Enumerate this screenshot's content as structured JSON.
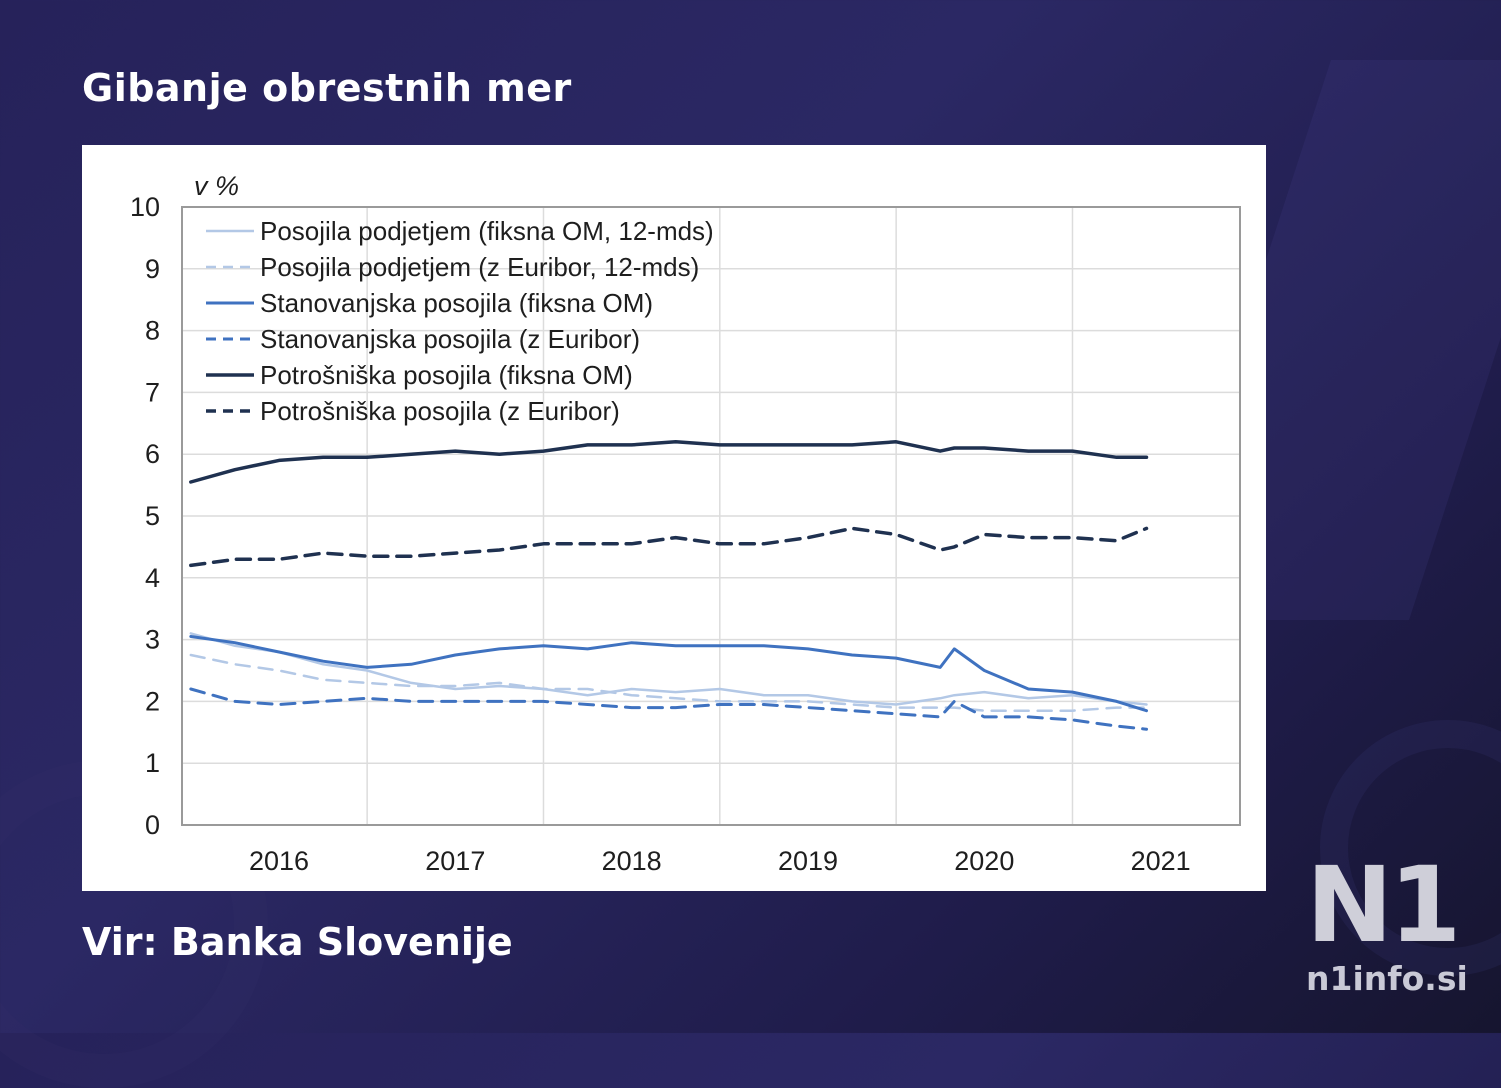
{
  "page_title": "Gibanje obrestnih mer",
  "source_text": "Vir: Banka Slovenije",
  "logo": {
    "mark": "N1",
    "site": "n1info.si"
  },
  "colors": {
    "light_blue": "#b3c8e6",
    "mid_blue": "#3f72c0",
    "dark_navy": "#1f3150"
  },
  "chart_data": {
    "type": "line",
    "title": "",
    "unit_label": "v %",
    "xlabel": "",
    "ylabel": "v %",
    "xlim": [
      2015.45,
      2021.45
    ],
    "ylim": [
      0,
      10
    ],
    "yticks": [
      "0",
      "1",
      "2",
      "3",
      "4",
      "5",
      "6",
      "7",
      "8",
      "9",
      "10"
    ],
    "xticks": [
      {
        "label": "2016",
        "x": 2016
      },
      {
        "label": "2017",
        "x": 2017
      },
      {
        "label": "2018",
        "x": 2018
      },
      {
        "label": "2019",
        "x": 2019
      },
      {
        "label": "2020",
        "x": 2020
      },
      {
        "label": "2021",
        "x": 2021
      }
    ],
    "grid": true,
    "legend_position": "top-left",
    "x": [
      2015.5,
      2015.75,
      2016.0,
      2016.25,
      2016.5,
      2016.75,
      2017.0,
      2017.25,
      2017.5,
      2017.75,
      2018.0,
      2018.25,
      2018.5,
      2018.75,
      2019.0,
      2019.25,
      2019.5,
      2019.75,
      2019.83,
      2020.0,
      2020.25,
      2020.5,
      2020.75,
      2020.92
    ],
    "series": [
      {
        "name": "Posojila podjetjem (fiksna OM, 12-mds)",
        "color": "#b3c8e6",
        "dash": "solid",
        "width": 2.5,
        "values": [
          3.1,
          2.9,
          2.8,
          2.6,
          2.5,
          2.3,
          2.2,
          2.25,
          2.2,
          2.1,
          2.2,
          2.15,
          2.2,
          2.1,
          2.1,
          2.0,
          1.95,
          2.05,
          2.1,
          2.15,
          2.05,
          2.1,
          2.0,
          1.95
        ]
      },
      {
        "name": "Posojila podjetjem (z Euribor, 12-mds)",
        "color": "#b3c8e6",
        "dash": "dashed",
        "width": 2.5,
        "values": [
          2.75,
          2.6,
          2.5,
          2.35,
          2.3,
          2.25,
          2.25,
          2.3,
          2.2,
          2.2,
          2.1,
          2.05,
          2.0,
          2.0,
          2.0,
          1.95,
          1.9,
          1.9,
          1.9,
          1.85,
          1.85,
          1.85,
          1.9,
          1.9
        ]
      },
      {
        "name": "Stanovanjska posojila (fiksna OM)",
        "color": "#3f72c0",
        "dash": "solid",
        "width": 3,
        "values": [
          3.05,
          2.95,
          2.8,
          2.65,
          2.55,
          2.6,
          2.75,
          2.85,
          2.9,
          2.85,
          2.95,
          2.9,
          2.9,
          2.9,
          2.85,
          2.75,
          2.7,
          2.55,
          2.85,
          2.5,
          2.2,
          2.15,
          2.0,
          1.85
        ]
      },
      {
        "name": "Stanovanjska posojila (z Euribor)",
        "color": "#3f72c0",
        "dash": "dashed",
        "width": 3,
        "values": [
          2.2,
          2.0,
          1.95,
          2.0,
          2.05,
          2.0,
          2.0,
          2.0,
          2.0,
          1.95,
          1.9,
          1.9,
          1.95,
          1.95,
          1.9,
          1.85,
          1.8,
          1.75,
          2.0,
          1.75,
          1.75,
          1.7,
          1.6,
          1.55
        ]
      },
      {
        "name": "Potrošniška posojila (fiksna OM)",
        "color": "#1f3150",
        "dash": "solid",
        "width": 3.5,
        "values": [
          5.55,
          5.75,
          5.9,
          5.95,
          5.95,
          6.0,
          6.05,
          6.0,
          6.05,
          6.15,
          6.15,
          6.2,
          6.15,
          6.15,
          6.15,
          6.15,
          6.2,
          6.05,
          6.1,
          6.1,
          6.05,
          6.05,
          5.95,
          5.95
        ]
      },
      {
        "name": "Potrošniška posojila (z Euribor)",
        "color": "#1f3150",
        "dash": "dashed",
        "width": 3.5,
        "values": [
          4.2,
          4.3,
          4.3,
          4.4,
          4.35,
          4.35,
          4.4,
          4.45,
          4.55,
          4.55,
          4.55,
          4.65,
          4.55,
          4.55,
          4.65,
          4.8,
          4.7,
          4.45,
          4.5,
          4.7,
          4.65,
          4.65,
          4.6,
          4.8
        ]
      }
    ]
  }
}
